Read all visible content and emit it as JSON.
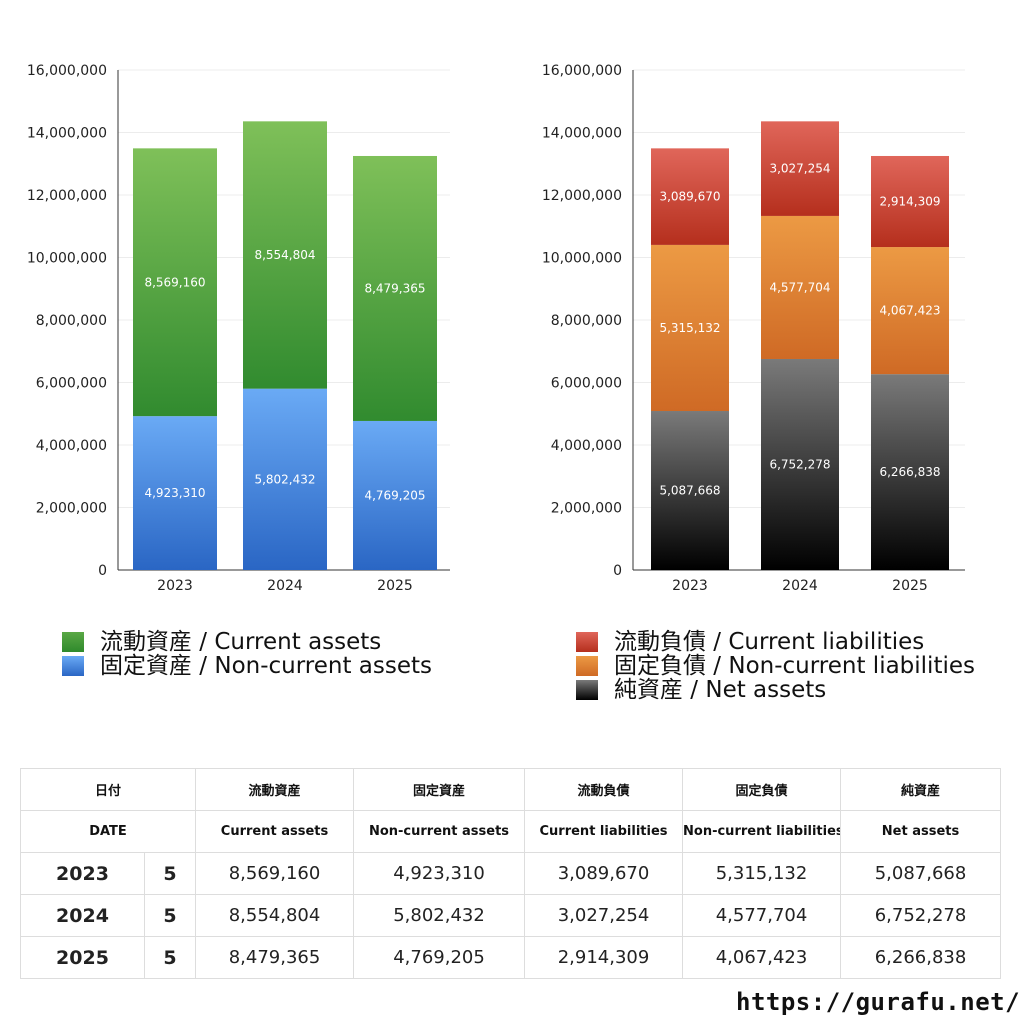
{
  "chart_data": [
    {
      "type": "bar",
      "stacked": true,
      "categories": [
        "2023",
        "2024",
        "2025"
      ],
      "yticks": [
        "0",
        "2,000,000",
        "4,000,000",
        "6,000,000",
        "8,000,000",
        "10,000,000",
        "12,000,000",
        "14,000,000",
        "16,000,000"
      ],
      "ylim": [
        0,
        16000000
      ],
      "grid": true,
      "series": [
        {
          "name": "固定資産 / Non-current assets",
          "values": [
            4923310,
            5802432,
            4769205
          ],
          "labels": [
            "4,923,310",
            "5,802,432",
            "4,769,205"
          ],
          "color_top": "#6aaaf5",
          "color_bottom": "#2a66c4"
        },
        {
          "name": "流動資産 / Current assets",
          "values": [
            8569160,
            8554804,
            8479365
          ],
          "labels": [
            "8,569,160",
            "8,554,804",
            "8,479,365"
          ],
          "color_top": "#7fc059",
          "color_bottom": "#318b2f"
        }
      ]
    },
    {
      "type": "bar",
      "stacked": true,
      "categories": [
        "2023",
        "2024",
        "2025"
      ],
      "yticks": [
        "0",
        "2,000,000",
        "4,000,000",
        "6,000,000",
        "8,000,000",
        "10,000,000",
        "12,000,000",
        "14,000,000",
        "16,000,000"
      ],
      "ylim": [
        0,
        16000000
      ],
      "grid": true,
      "series": [
        {
          "name": "純資産 / Net assets",
          "values": [
            5087668,
            6752278,
            6266838
          ],
          "labels": [
            "5,087,668",
            "6,752,278",
            "6,266,838"
          ],
          "color_top": "#7a7a7a",
          "color_bottom": "#000000"
        },
        {
          "name": "固定負債 / Non-current liabilities",
          "values": [
            5315132,
            4577704,
            4067423
          ],
          "labels": [
            "5,315,132",
            "4,577,704",
            "4,067,423"
          ],
          "color_top": "#ec9a44",
          "color_bottom": "#cf6a25"
        },
        {
          "name": "流動負債 / Current liabilities",
          "values": [
            3089670,
            3027254,
            2914309
          ],
          "labels": [
            "3,089,670",
            "3,027,254",
            "2,914,309"
          ],
          "color_top": "#e0665a",
          "color_bottom": "#b52f1d"
        }
      ]
    }
  ],
  "legend_left": [
    {
      "label": "流動資産 / Current assets",
      "color": "#4a9f3c"
    },
    {
      "label": "固定資産 / Non-current assets",
      "color": "#4b86de"
    }
  ],
  "legend_right": [
    {
      "label": "流動負債 / Current liabilities",
      "color": "#cf4433"
    },
    {
      "label": "固定負債 / Non-current liabilities",
      "color": "#e08538"
    },
    {
      "label": "純資産 / Net assets",
      "color": "#2a2a2a"
    }
  ],
  "table": {
    "header_ja": [
      "日付",
      "流動資産",
      "固定資産",
      "流動負債",
      "固定負債",
      "純資産"
    ],
    "header_en": [
      "DATE",
      "Current assets",
      "Non-current assets",
      "Current liabilities",
      "Non-current liabilities",
      "Net assets"
    ],
    "rows": [
      {
        "year": "2023",
        "n": "5",
        "cells": [
          "8,569,160",
          "4,923,310",
          "3,089,670",
          "5,315,132",
          "5,087,668"
        ]
      },
      {
        "year": "2024",
        "n": "5",
        "cells": [
          "8,554,804",
          "5,802,432",
          "3,027,254",
          "4,577,704",
          "6,752,278"
        ]
      },
      {
        "year": "2025",
        "n": "5",
        "cells": [
          "8,479,365",
          "4,769,205",
          "2,914,309",
          "4,067,423",
          "6,266,838"
        ]
      }
    ]
  },
  "url": "https://gurafu.net/"
}
